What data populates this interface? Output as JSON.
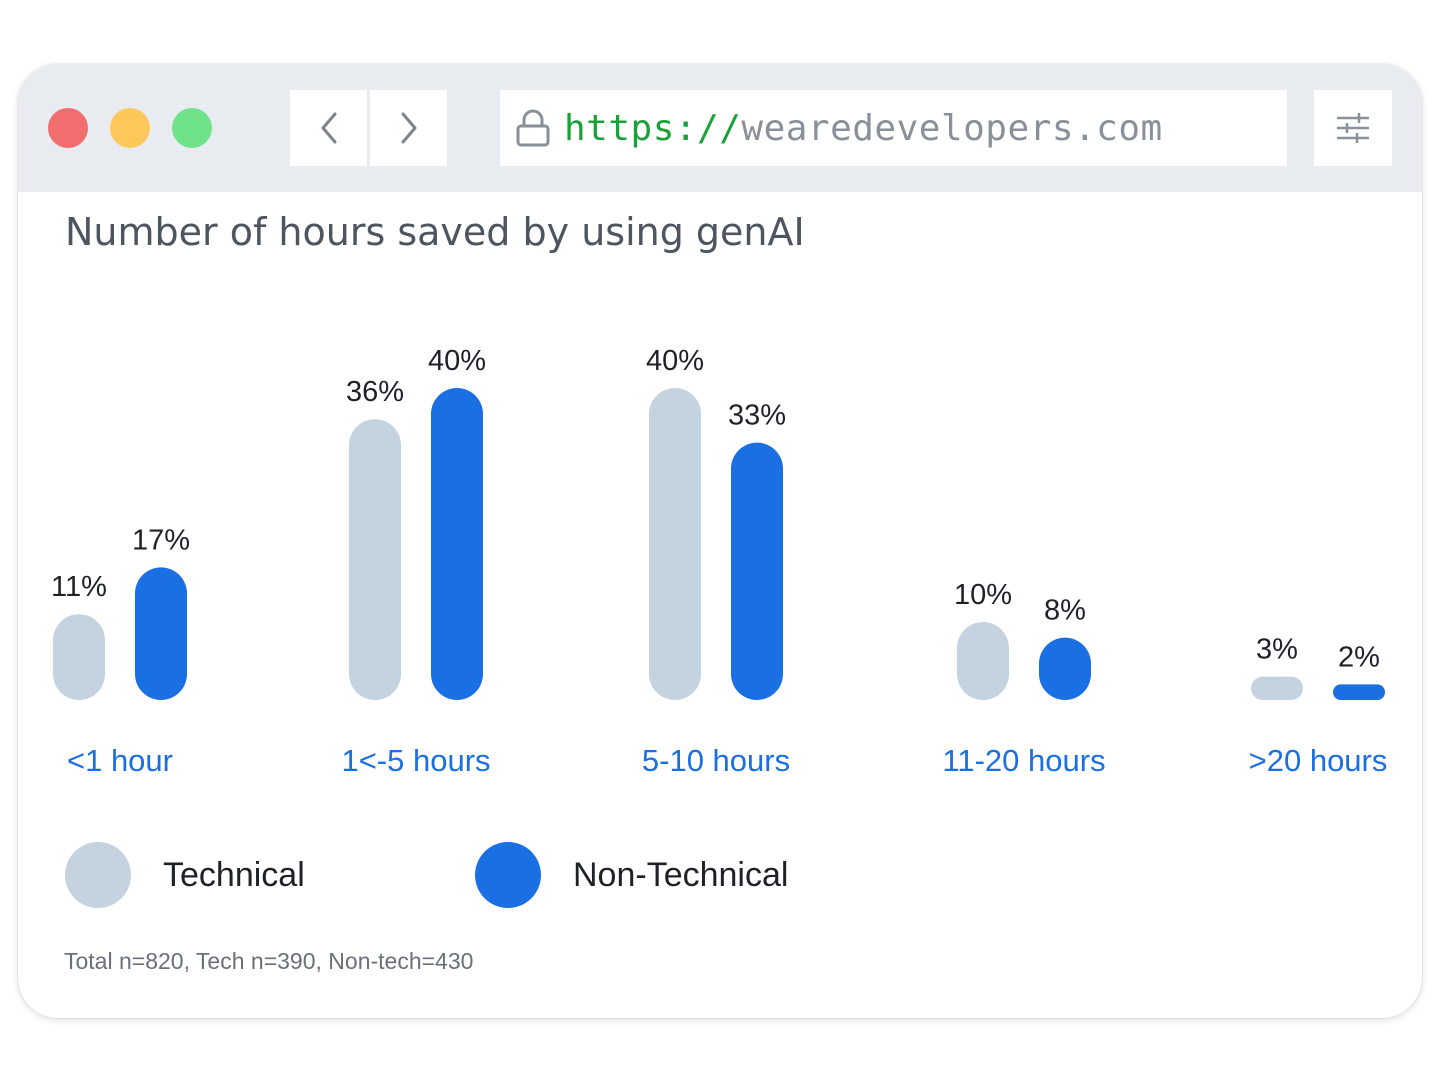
{
  "window": {
    "controls": {
      "close_color": "#f26d6d",
      "minimize_color": "#fdc75b",
      "maximize_color": "#6fe28a"
    },
    "nav": {
      "back_icon": "chevron-left-icon",
      "forward_icon": "chevron-right-icon"
    },
    "address_bar": {
      "lock_icon": "lock-icon",
      "protocol": "https://",
      "host": "wearedevelopers.com"
    },
    "menu_icon": "sliders-icon"
  },
  "chart_data": {
    "type": "bar",
    "title": "Number of hours saved by using genAI",
    "categories": [
      "<1 hour",
      "1<-5 hours",
      "5-10 hours",
      "11-20 hours",
      ">20 hours"
    ],
    "series": [
      {
        "name": "Technical",
        "color": "#c5d2e0",
        "values": [
          11,
          36,
          40,
          10,
          3
        ],
        "labels": [
          "11%",
          "36%",
          "40%",
          "10%",
          "3%"
        ]
      },
      {
        "name": "Non-Technical",
        "color": "#1a6fe3",
        "values": [
          17,
          40,
          33,
          8,
          2
        ],
        "labels": [
          "17%",
          "40%",
          "33%",
          "8%",
          "2%"
        ]
      }
    ],
    "ylim": [
      0,
      40
    ],
    "grid": false,
    "legend_position": "bottom-left",
    "category_label_color": "#1a6fe3",
    "value_label_color": "#1e2228"
  },
  "footnote": "Total n=820, Tech n=390, Non-tech=430"
}
